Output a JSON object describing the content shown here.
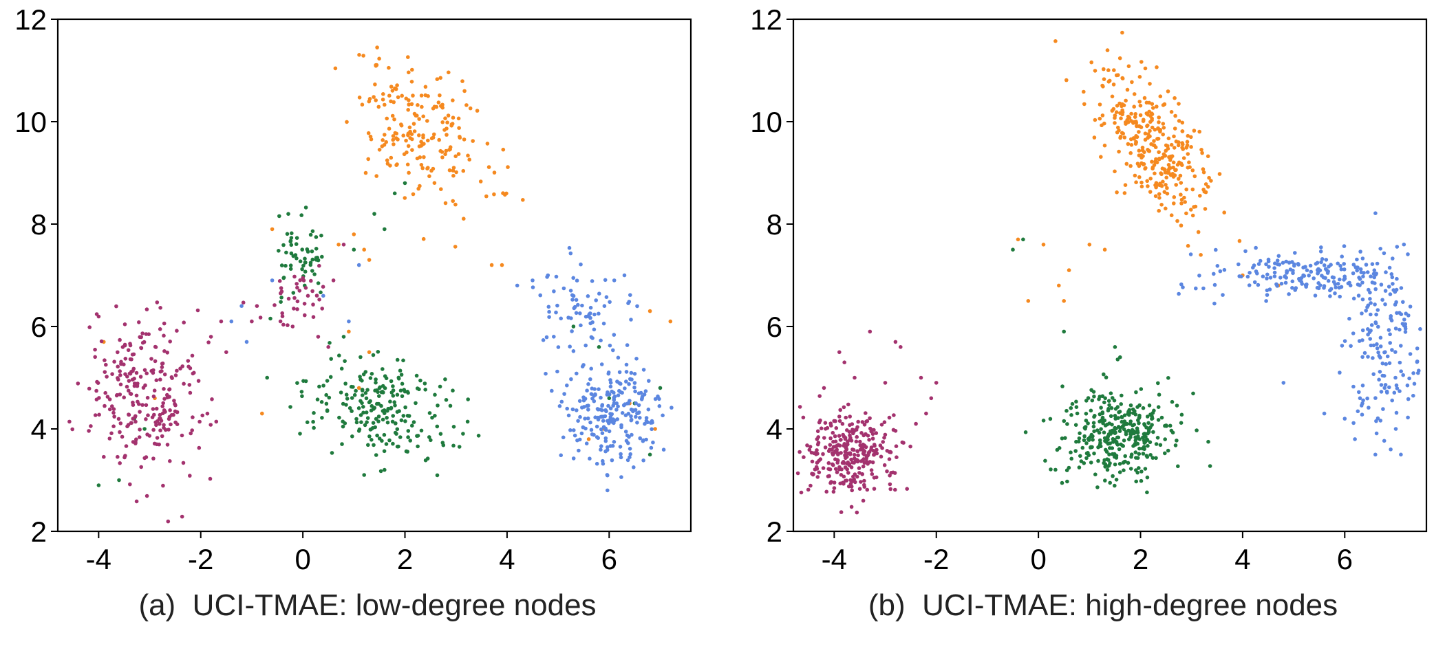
{
  "chart_data": [
    {
      "type": "scatter",
      "caption": "(a)  UCI-TMAE: low-degree nodes",
      "xticks": [
        -4,
        -2,
        0,
        2,
        4,
        6
      ],
      "yticks": [
        2,
        4,
        6,
        8,
        10,
        12
      ],
      "xlim": [
        -4.8,
        7.6
      ],
      "ylim": [
        2,
        12
      ],
      "grid": false,
      "colors": {
        "orange": "#f5891f",
        "green": "#1f7a3d",
        "purple": "#a3326e",
        "blue": "#5b86e0"
      },
      "clusters": [
        {
          "color": "orange",
          "count": 200,
          "cx": 2.3,
          "cy": 9.8,
          "sx": 0.55,
          "sy": 0.75,
          "angle": 45,
          "points": [
            [
              -0.6,
              7.9
            ],
            [
              0.7,
              7.6
            ],
            [
              1.0,
              7.8
            ],
            [
              1.2,
              7.5
            ],
            [
              1.3,
              7.3
            ],
            [
              3.7,
              7.2
            ],
            [
              3.9,
              7.2
            ],
            [
              6.8,
              6.3
            ],
            [
              7.2,
              6.1
            ],
            [
              0.9,
              5.9
            ],
            [
              1.3,
              5.5
            ],
            [
              1.1,
              4.8
            ],
            [
              -0.8,
              4.3
            ],
            [
              -2.9,
              4.6
            ],
            [
              -3.9,
              5.7
            ],
            [
              6.4,
              4.5
            ],
            [
              5.9,
              4.0
            ],
            [
              6.9,
              4.0
            ],
            [
              5.6,
              3.8
            ]
          ]
        },
        {
          "color": "green",
          "count": 60,
          "cx": -0.05,
          "cy": 7.3,
          "sx": 0.3,
          "sy": 0.4,
          "angle": 0,
          "points": []
        },
        {
          "color": "green",
          "count": 220,
          "cx": 1.6,
          "cy": 4.4,
          "sx": 0.75,
          "sy": 0.45,
          "angle": -20,
          "points": [
            [
              1.8,
              8.6
            ],
            [
              2.0,
              8.8
            ],
            [
              1.4,
              8.2
            ],
            [
              1.6,
              7.9
            ],
            [
              1.0,
              7.5
            ],
            [
              0.8,
              5.8
            ],
            [
              1.2,
              3.1
            ],
            [
              1.6,
              3.2
            ],
            [
              -0.7,
              5.0
            ],
            [
              -4.0,
              2.9
            ],
            [
              -3.6,
              3.0
            ],
            [
              -3.3,
              4.2
            ],
            [
              -3.1,
              4.0
            ],
            [
              5.3,
              6.0
            ],
            [
              5.8,
              5.6
            ],
            [
              6.0,
              4.6
            ],
            [
              6.5,
              4.5
            ],
            [
              6.8,
              3.5
            ],
            [
              7.0,
              4.8
            ]
          ]
        },
        {
          "color": "purple",
          "count": 260,
          "cx": -3.1,
          "cy": 4.7,
          "sx": 0.6,
          "sy": 0.85,
          "angle": 10,
          "points": [
            [
              -0.4,
              6.2
            ],
            [
              -0.2,
              6.0
            ],
            [
              0.1,
              6.6
            ],
            [
              0.3,
              5.8
            ],
            [
              0.5,
              5.6
            ],
            [
              0.8,
              7.6
            ],
            [
              0.6,
              6.9
            ],
            [
              -1.0,
              6.1
            ],
            [
              -0.9,
              6.4
            ],
            [
              -1.8,
              5.8
            ],
            [
              -1.5,
              5.5
            ],
            [
              -1.6,
              6.1
            ]
          ]
        },
        {
          "color": "purple",
          "count": 35,
          "cx": -0.05,
          "cy": 6.6,
          "sx": 0.35,
          "sy": 0.3,
          "angle": 0,
          "points": []
        },
        {
          "color": "blue",
          "count": 230,
          "cx": 6.1,
          "cy": 4.3,
          "sx": 0.45,
          "sy": 0.5,
          "angle": 0,
          "points": []
        },
        {
          "color": "blue",
          "count": 70,
          "cx": 5.5,
          "cy": 6.3,
          "sx": 0.45,
          "sy": 0.45,
          "angle": 35,
          "points": [
            [
              4.2,
              6.8
            ],
            [
              4.5,
              6.9
            ],
            [
              4.8,
              7.0
            ],
            [
              6.1,
              6.9
            ],
            [
              6.3,
              7.0
            ],
            [
              -0.6,
              6.9
            ],
            [
              0.4,
              6.6
            ],
            [
              0.9,
              6.1
            ],
            [
              1.1,
              7.2
            ],
            [
              -1.1,
              5.7
            ],
            [
              -1.4,
              6.1
            ],
            [
              -1.2,
              6.4
            ]
          ]
        }
      ]
    },
    {
      "type": "scatter",
      "caption": "(b)  UCI-TMAE: high-degree nodes",
      "xticks": [
        -4,
        -2,
        0,
        2,
        4,
        6
      ],
      "yticks": [
        2,
        4,
        6,
        8,
        10,
        12
      ],
      "xlim": [
        -4.8,
        7.6
      ],
      "ylim": [
        2,
        12
      ],
      "grid": false,
      "colors": {
        "orange": "#f5891f",
        "green": "#1f7a3d",
        "purple": "#a3326e",
        "blue": "#5b86e0"
      },
      "clusters": [
        {
          "color": "orange",
          "count": 330,
          "cx": 2.2,
          "cy": 9.6,
          "sx": 0.38,
          "sy": 0.85,
          "angle": 35,
          "points": [
            [
              -0.4,
              7.7
            ],
            [
              0.1,
              7.6
            ],
            [
              0.4,
              6.8
            ],
            [
              0.5,
              6.5
            ],
            [
              -0.2,
              6.5
            ],
            [
              0.6,
              7.1
            ],
            [
              4.7,
              6.8
            ],
            [
              4.0,
              7.0
            ],
            [
              1.0,
              7.6
            ],
            [
              1.3,
              7.5
            ]
          ]
        },
        {
          "color": "green",
          "count": 340,
          "cx": 1.6,
          "cy": 3.9,
          "sx": 0.55,
          "sy": 0.45,
          "angle": 0,
          "points": [
            [
              1.5,
              5.6
            ],
            [
              1.6,
              5.4
            ],
            [
              0.5,
              5.9
            ],
            [
              -0.5,
              7.5
            ],
            [
              -0.3,
              7.7
            ]
          ]
        },
        {
          "color": "purple",
          "count": 300,
          "cx": -3.7,
          "cy": 3.5,
          "sx": 0.45,
          "sy": 0.4,
          "angle": 0,
          "points": [
            [
              -3.3,
              5.9
            ],
            [
              -2.8,
              5.7
            ],
            [
              -2.7,
              5.6
            ],
            [
              -3.9,
              5.5
            ],
            [
              -3.8,
              5.3
            ],
            [
              -2.3,
              5.0
            ],
            [
              -2.0,
              4.9
            ],
            [
              -2.1,
              4.6
            ],
            [
              -2.2,
              4.3
            ],
            [
              -2.4,
              4.1
            ],
            [
              -3.0,
              4.9
            ],
            [
              -4.2,
              4.8
            ],
            [
              -3.6,
              5.0
            ]
          ]
        },
        {
          "color": "blue",
          "count": 190,
          "cx": 5.2,
          "cy": 7.0,
          "sx": 0.9,
          "sy": 0.25,
          "angle": 0,
          "points": []
        },
        {
          "color": "blue",
          "count": 150,
          "cx": 6.8,
          "cy": 5.6,
          "sx": 0.35,
          "sy": 0.9,
          "angle": 0,
          "points": [
            [
              4.8,
              4.9
            ],
            [
              5.6,
              4.3
            ],
            [
              6.0,
              4.2
            ],
            [
              6.2,
              3.8
            ],
            [
              6.9,
              3.6
            ],
            [
              7.0,
              4.0
            ],
            [
              6.6,
              3.5
            ],
            [
              7.1,
              3.5
            ],
            [
              6.3,
              4.6
            ],
            [
              5.9,
              5.1
            ]
          ]
        }
      ]
    }
  ]
}
